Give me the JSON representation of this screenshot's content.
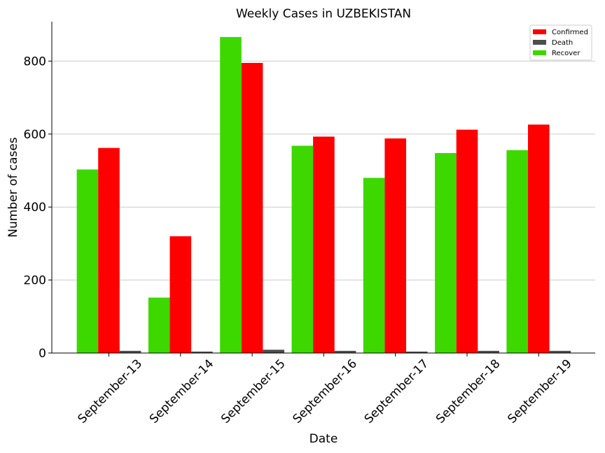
{
  "chart_data": {
    "type": "bar",
    "title": "Weekly Cases in UZBEKISTAN",
    "xlabel": "Date",
    "ylabel": "Number of cases",
    "categories": [
      "September-13",
      "September-14",
      "September-15",
      "September-16",
      "September-17",
      "September-18",
      "September-19"
    ],
    "series": [
      {
        "name": "Recover",
        "color": "#3dd800",
        "values": [
          503,
          152,
          866,
          568,
          480,
          548,
          556
        ]
      },
      {
        "name": "Confirmed",
        "color": "#ff0000",
        "values": [
          562,
          320,
          795,
          593,
          588,
          612,
          626
        ]
      },
      {
        "name": "Death",
        "color": "#4d4d4d",
        "values": [
          6,
          4,
          9,
          6,
          4,
          6,
          6
        ]
      }
    ],
    "legend_order": [
      "Confirmed",
      "Death",
      "Recover"
    ],
    "legend_position": "top-right",
    "ylim": [
      0,
      908
    ],
    "yticks": [
      0,
      200,
      400,
      600,
      800
    ],
    "grid": "horizontal"
  }
}
